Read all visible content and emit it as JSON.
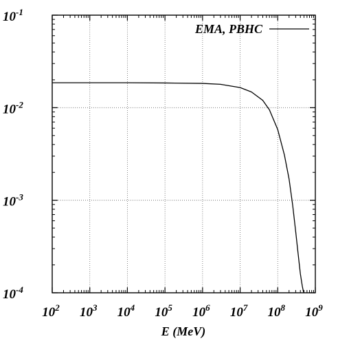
{
  "chart_data": {
    "type": "line",
    "xscale": "log",
    "yscale": "log",
    "xlim": [
      100,
      1000000000
    ],
    "ylim": [
      0.0001,
      0.1
    ],
    "xlabel": "E (MeV)",
    "ylabel": "",
    "grid": true,
    "legend_position": "top-right",
    "x_ticks": [
      {
        "base": "10",
        "exp": "2",
        "value": 100
      },
      {
        "base": "10",
        "exp": "3",
        "value": 1000
      },
      {
        "base": "10",
        "exp": "4",
        "value": 10000
      },
      {
        "base": "10",
        "exp": "5",
        "value": 100000
      },
      {
        "base": "10",
        "exp": "6",
        "value": 1000000
      },
      {
        "base": "10",
        "exp": "7",
        "value": 10000000
      },
      {
        "base": "10",
        "exp": "8",
        "value": 100000000
      },
      {
        "base": "10",
        "exp": "9",
        "value": 1000000000
      }
    ],
    "y_ticks": [
      {
        "base": "10",
        "exp": "-4",
        "value": 0.0001
      },
      {
        "base": "10",
        "exp": "-3",
        "value": 0.001
      },
      {
        "base": "10",
        "exp": "-2",
        "value": 0.01
      },
      {
        "base": "10",
        "exp": "-1",
        "value": 0.1
      }
    ],
    "series": [
      {
        "name": "EMA, PBHC",
        "color": "#000000",
        "x": [
          100,
          1000,
          10000,
          100000,
          1000000,
          3000000,
          10000000,
          20000000,
          40000000,
          60000000,
          100000000,
          150000000,
          200000000,
          250000000,
          300000000,
          350000000,
          400000000,
          450000000,
          480000000,
          500000000
        ],
        "y": [
          0.0186,
          0.0186,
          0.0186,
          0.0185,
          0.0183,
          0.0179,
          0.0165,
          0.0148,
          0.012,
          0.0095,
          0.0058,
          0.0031,
          0.0017,
          0.00088,
          0.00046,
          0.00026,
          0.00016,
          0.000118,
          0.000104,
          0.0001
        ]
      }
    ]
  }
}
